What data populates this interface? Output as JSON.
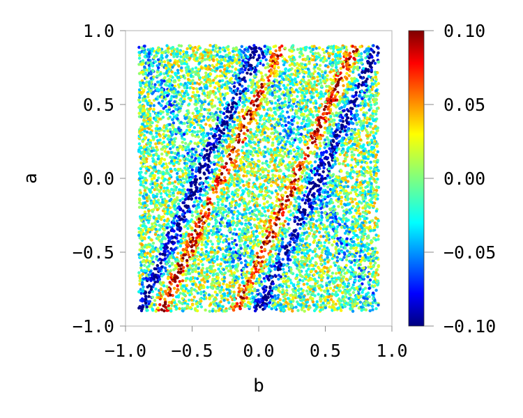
{
  "chart_data": {
    "type": "scatter",
    "title": "",
    "xlabel": "b",
    "ylabel": "a",
    "xlim": [
      -1.0,
      1.0
    ],
    "ylim": [
      -1.0,
      1.0
    ],
    "xticks": [
      -1.0,
      -0.5,
      0.0,
      0.5,
      1.0
    ],
    "xtick_labels": [
      "−1.0",
      "−0.5",
      "0.0",
      "0.5",
      "1.0"
    ],
    "yticks": [
      -1.0,
      -0.5,
      0.0,
      0.5,
      1.0
    ],
    "ytick_labels": [
      "−1.0",
      "−0.5",
      "0.0",
      "0.5",
      "1.0"
    ],
    "data_extent": {
      "b": [
        -0.9,
        0.9
      ],
      "a": [
        -0.9,
        0.9
      ]
    },
    "color_field": {
      "description": "dense scatter of points over b in [-0.9,0.9], a in [-0.9,0.9]; diagonal bands: positive (red) band around b = 0.5a + 0.35 and b = 0.5a - 0.45 region edges, negative (blue) bands adjacent; central diamond mixed near 0.02",
      "bands": [
        {
          "offset": -0.8,
          "value": 0.08
        },
        {
          "offset": -0.62,
          "value": -0.09
        },
        {
          "offset": -0.35,
          "value": -0.01
        },
        {
          "offset": -0.05,
          "value": 0.02
        },
        {
          "offset": 0.18,
          "value": 0.08
        },
        {
          "offset": 0.35,
          "value": -0.09
        },
        {
          "offset": 0.55,
          "value": 0.0
        },
        {
          "offset": 0.8,
          "value": 0.04
        }
      ]
    },
    "grid": false,
    "colorbar": {
      "colormap": "jet",
      "range": [
        -0.1,
        0.1
      ],
      "ticks": [
        0.1,
        0.05,
        0.0,
        -0.05,
        -0.1
      ],
      "tick_labels": [
        "0.10",
        "0.05",
        "0.00",
        "−0.05",
        "−0.10"
      ]
    }
  }
}
